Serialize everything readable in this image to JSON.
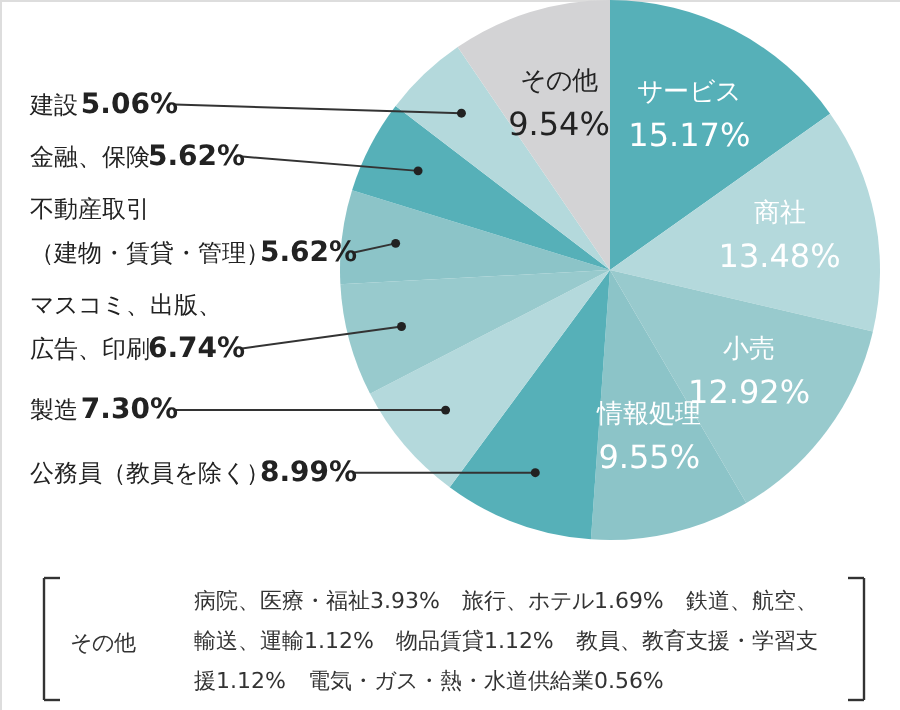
{
  "chart_data": {
    "type": "pie",
    "categories": [
      "サービス",
      "商社",
      "小売",
      "情報処理",
      "公務員（教員を除く）",
      "製造",
      "マスコミ、出版、広告、印刷",
      "不動産取引（建物・賃貸・管理）",
      "金融、保険",
      "建設",
      "その他"
    ],
    "values": [
      15.17,
      13.48,
      12.92,
      9.55,
      8.99,
      7.3,
      6.74,
      5.62,
      5.62,
      5.06,
      9.54
    ],
    "value_labels": [
      "15.17%",
      "13.48%",
      "12.92%",
      "9.55%",
      "8.99%",
      "7.30%",
      "6.74%",
      "5.62%",
      "5.62%",
      "5.06%",
      "9.54%"
    ],
    "colors": [
      "#56b0b8",
      "#b4d9dc",
      "#98cacd",
      "#8cc4c8",
      "#56b0b8",
      "#b4d9dc",
      "#98cacd",
      "#8cc4c8",
      "#56b0b8",
      "#b4d9dc",
      "#d3d3d5"
    ],
    "annotations": [
      "その他",
      "病院、医療・福祉3.93%　旅行、ホテル1.69%　鉄道、航空、輸送、運輸1.12%　物品賃貸1.12%　教員、教育支援・学習支援1.12%　電気・ガス・熱・水道供給業0.56%"
    ]
  }
}
